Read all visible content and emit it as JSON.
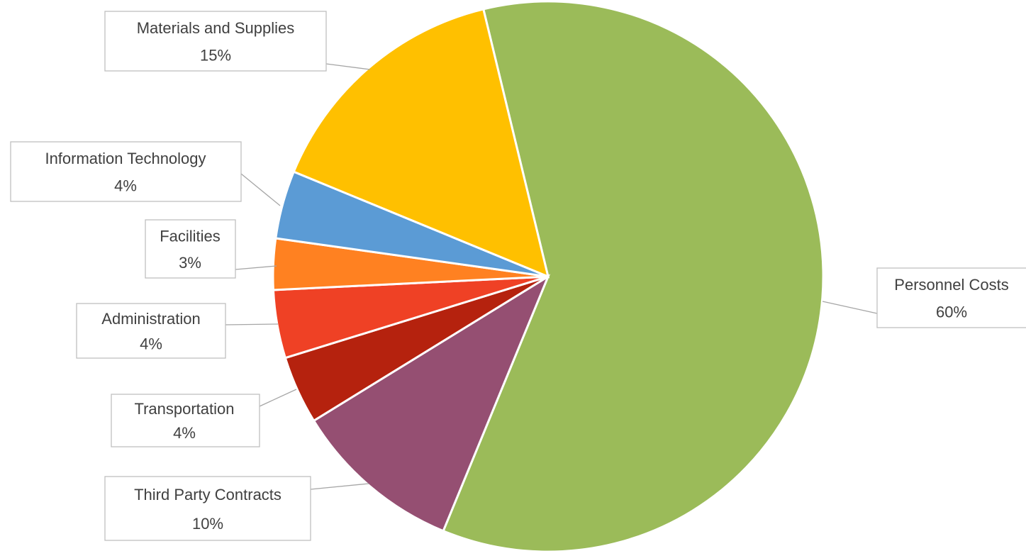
{
  "chart_data": {
    "type": "pie",
    "categories": [
      "Personnel Costs",
      "Third Party Contracts",
      "Transportation",
      "Administration",
      "Facilities",
      "Information Technology",
      "Materials and Supplies"
    ],
    "values": [
      60,
      10,
      4,
      4,
      3,
      4,
      15
    ],
    "value_labels": [
      "60%",
      "10%",
      "4%",
      "4%",
      "3%",
      "4%",
      "15%"
    ],
    "colors": [
      "#9bbb59",
      "#954f72",
      "#b5220e",
      "#ef4125",
      "#ff8121",
      "#5b9bd5",
      "#ffc000"
    ]
  }
}
